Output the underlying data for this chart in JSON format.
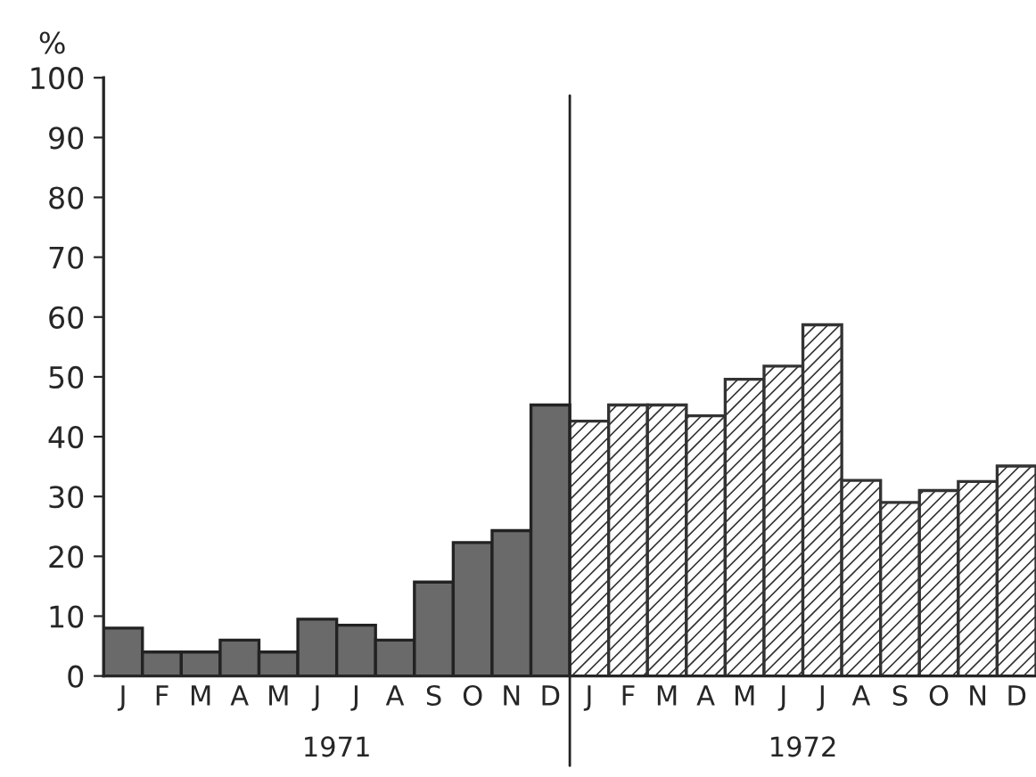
{
  "chart_data": {
    "type": "bar",
    "ylabel": "%",
    "categories": [
      "J",
      "F",
      "M",
      "A",
      "M",
      "J",
      "J",
      "A",
      "S",
      "O",
      "N",
      "D",
      "J",
      "F",
      "M",
      "A",
      "M",
      "J",
      "J",
      "A",
      "S",
      "O",
      "N",
      "D"
    ],
    "series": [
      {
        "color": "#6a6a6a",
        "values": [
          8,
          4,
          4,
          6,
          4,
          9.5,
          8.5,
          6,
          15.7,
          22.3,
          24.3,
          45.3,
          null,
          null,
          null,
          null,
          null,
          null,
          null,
          null,
          null,
          null,
          null,
          null
        ]
      },
      {
        "color": "#333333",
        "values": [
          null,
          null,
          null,
          null,
          null,
          null,
          null,
          null,
          null,
          null,
          null,
          null,
          42.6,
          45.3,
          45.3,
          43.5,
          49.6,
          51.8,
          58.7,
          32.7,
          29,
          31,
          32.5,
          35.1
        ]
      }
    ],
    "annotations": [
      "1971",
      "1972"
    ],
    "ylim": [
      0,
      100
    ],
    "yticks": [
      0,
      10,
      20,
      30,
      40,
      50,
      60,
      70,
      80,
      90,
      100
    ],
    "grid": false,
    "legend": false
  }
}
